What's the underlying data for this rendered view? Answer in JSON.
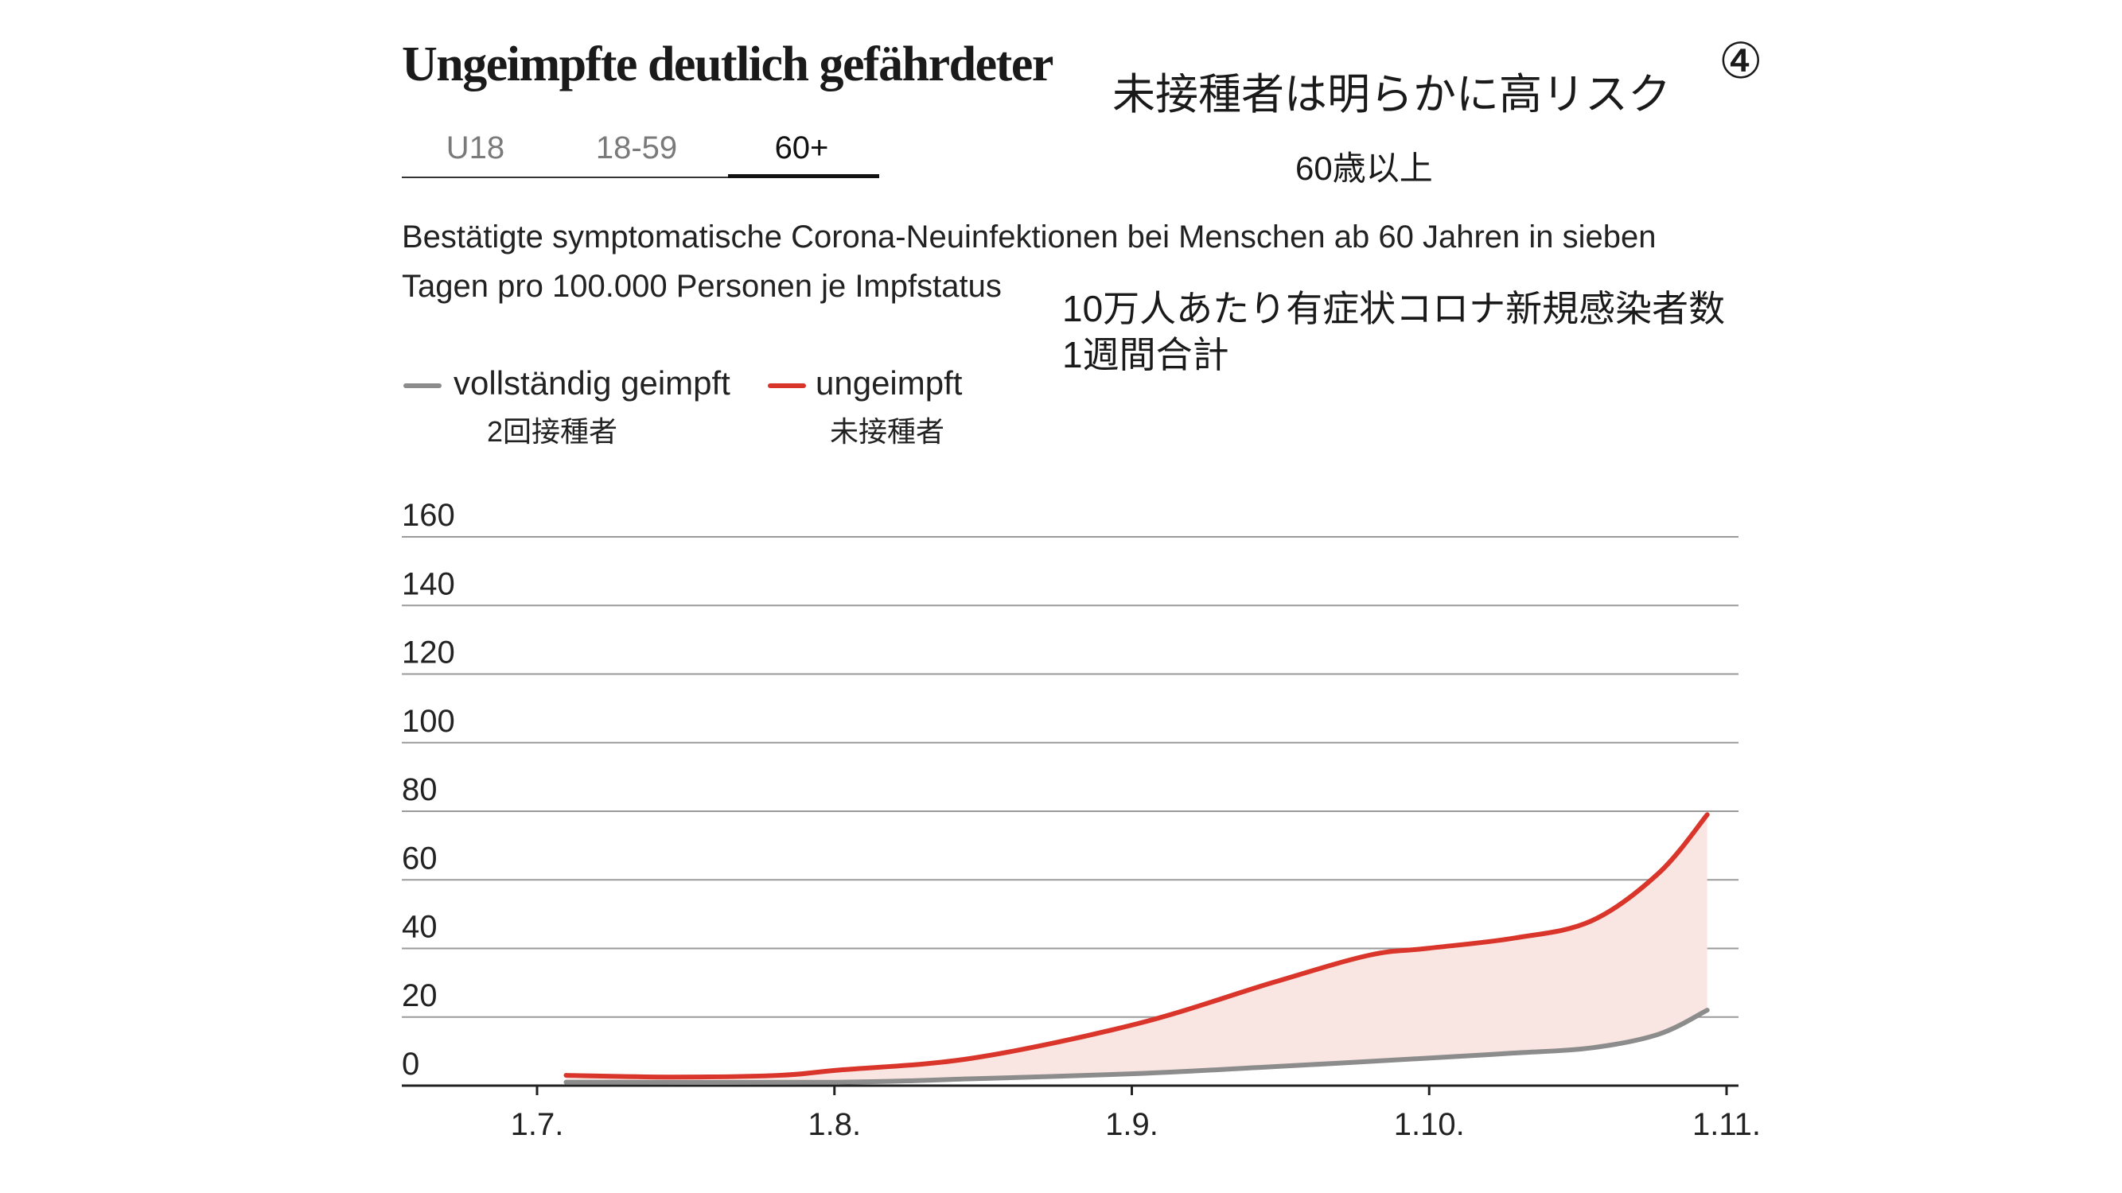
{
  "header": {
    "title": "Ungeimpfte deutlich gefährdeter",
    "title_ja": "未接種者は明らかに高リスク",
    "badge": "④"
  },
  "tabs": {
    "items": [
      {
        "label": "U18"
      },
      {
        "label": "18-59"
      },
      {
        "label": "60+"
      }
    ],
    "selected": "60+"
  },
  "age_note_ja": "60歳以上",
  "subtitle": {
    "line1": "Bestätigte symptomatische Corona-Neuinfektionen bei Menschen ab 60 Jahren in sieben",
    "line2": "Tagen pro 100.000 Personen je Impfstatus",
    "ja_line1": "10万人あたり有症状コロナ新規感染者数",
    "ja_line2": "1週間合計"
  },
  "legend": {
    "vaccinated": {
      "label": "vollständig geimpft",
      "label_ja": "2回接種者",
      "color": "#8c8c8c"
    },
    "unvaccinated": {
      "label": "ungeimpft",
      "label_ja": "未接種者",
      "color": "#d9352b"
    }
  },
  "chart_data": {
    "type": "line",
    "x_tick_labels": [
      "1.7.",
      "1.8.",
      "1.9.",
      "1.10.",
      "1.11."
    ],
    "y_ticks": [
      0,
      20,
      40,
      60,
      80,
      100,
      120,
      140,
      160
    ],
    "ylim": [
      0,
      160
    ],
    "xlim": [
      "1.7.",
      "1.11."
    ],
    "grid": true,
    "area_fill": {
      "between": [
        "ungeimpft",
        "vollständig geimpft"
      ],
      "color": "#f9e6e2"
    },
    "series": [
      {
        "name": "ungeimpft",
        "color": "#d9352b",
        "points": [
          [
            "4.7.",
            3
          ],
          [
            "15.7.",
            2.5
          ],
          [
            "26.7.",
            3
          ],
          [
            "1.8.",
            4.5
          ],
          [
            "15.8.",
            8
          ],
          [
            "1.9.",
            18
          ],
          [
            "15.9.",
            30
          ],
          [
            "25.9.",
            38
          ],
          [
            "1.10.",
            40
          ],
          [
            "10.10.",
            43
          ],
          [
            "18.10.",
            48
          ],
          [
            "25.10.",
            62
          ],
          [
            "30.10.",
            79
          ]
        ]
      },
      {
        "name": "vollständig geimpft",
        "color": "#8c8c8c",
        "points": [
          [
            "4.7.",
            1
          ],
          [
            "1.8.",
            1
          ],
          [
            "15.8.",
            2
          ],
          [
            "1.9.",
            3.5
          ],
          [
            "15.9.",
            5.5
          ],
          [
            "1.10.",
            8
          ],
          [
            "10.10.",
            9.5
          ],
          [
            "18.10.",
            11
          ],
          [
            "25.10.",
            15
          ],
          [
            "30.10.",
            22
          ]
        ]
      }
    ]
  }
}
